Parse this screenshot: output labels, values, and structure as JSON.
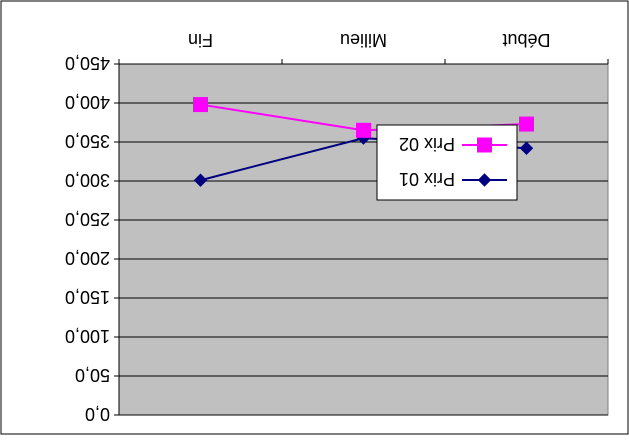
{
  "chart_data": {
    "type": "line",
    "categories": [
      "Début",
      "Milieu",
      "Fin"
    ],
    "ytick_labels": [
      "0,0",
      "50,0",
      "100,0",
      "150,0",
      "200,0",
      "250,0",
      "300,0",
      "350,0",
      "400,0",
      "450,0"
    ],
    "ylim": [
      0,
      450
    ],
    "y_axis_reversed": true,
    "image_rotated_180": true,
    "grid": true,
    "plot_background": "#C0C0C0",
    "legend_position": "right",
    "series": [
      {
        "name": "Prix 01",
        "color": "#000080",
        "marker": "diamond",
        "values": [
          342,
          355,
          301
        ]
      },
      {
        "name": "Prix 02",
        "color": "#FF00FF",
        "marker": "square",
        "values": [
          373,
          365,
          398
        ]
      }
    ]
  }
}
